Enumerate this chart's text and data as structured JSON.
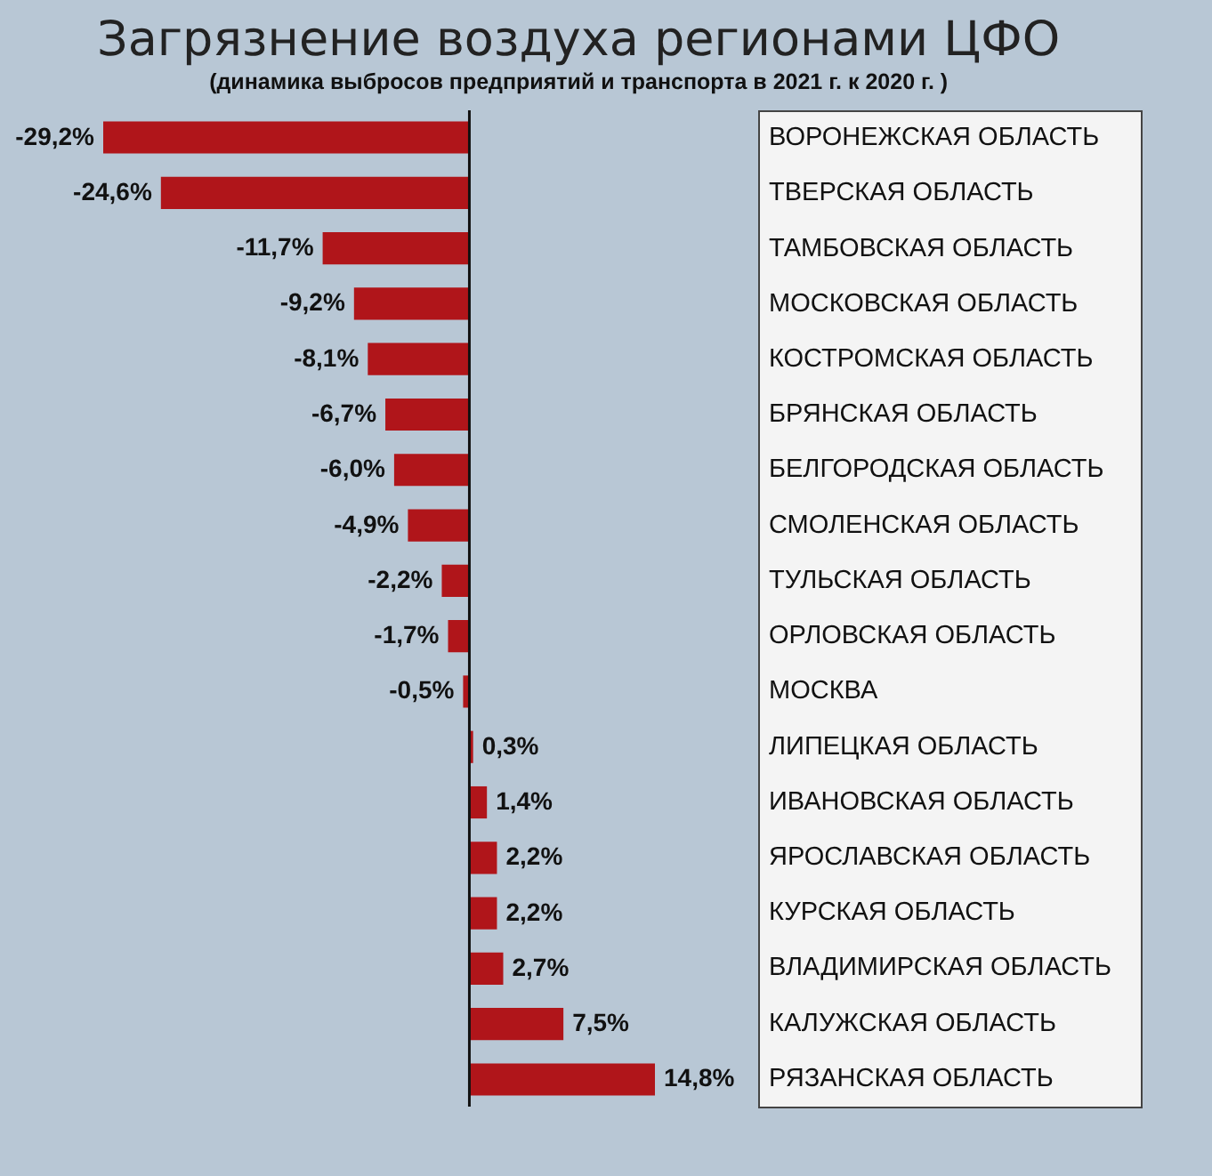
{
  "chart_data": {
    "type": "bar",
    "orientation": "horizontal",
    "title": "Загрязнение воздуха регионами ЦФО",
    "subtitle": "(динамика выбросов предприятий и транспорта в 2021 г. к 2020 г. )",
    "categories": [
      "ВОРОНЕЖСКАЯ ОБЛАСТЬ",
      "ТВЕРСКАЯ ОБЛАСТЬ",
      "ТАМБОВСКАЯ ОБЛАСТЬ",
      "МОСКОВСКАЯ ОБЛАСТЬ",
      "КОСТРОМСКАЯ ОБЛАСТЬ",
      "БРЯНСКАЯ ОБЛАСТЬ",
      "БЕЛГОРОДСКАЯ ОБЛАСТЬ",
      "СМОЛЕНСКАЯ ОБЛАСТЬ",
      "ТУЛЬСКАЯ ОБЛАСТЬ",
      "ОРЛОВСКАЯ ОБЛАСТЬ",
      "МОСКВА",
      "ЛИПЕЦКАЯ ОБЛАСТЬ",
      "ИВАНОВСКАЯ ОБЛАСТЬ",
      "ЯРОСЛАВСКАЯ ОБЛАСТЬ",
      "КУРСКАЯ ОБЛАСТЬ",
      "ВЛАДИМИРСКАЯ ОБЛАСТЬ",
      "КАЛУЖСКАЯ ОБЛАСТЬ",
      "РЯЗАНСКАЯ ОБЛАСТЬ"
    ],
    "values": [
      -29.2,
      -24.6,
      -11.7,
      -9.2,
      -8.1,
      -6.7,
      -6.0,
      -4.9,
      -2.2,
      -1.7,
      -0.5,
      0.3,
      1.4,
      2.2,
      2.2,
      2.7,
      7.5,
      14.8
    ],
    "value_labels": [
      "-29,2%",
      "-24,6%",
      "-11,7%",
      "-9,2%",
      "-8,1%",
      "-6,7%",
      "-6,0%",
      "-4,9%",
      "-2,2%",
      "-1,7%",
      "-0,5%",
      "0,3%",
      "1,4%",
      "2,2%",
      "2,2%",
      "2,7%",
      "7,5%",
      "14,8%"
    ],
    "color": "#b0151a"
  }
}
